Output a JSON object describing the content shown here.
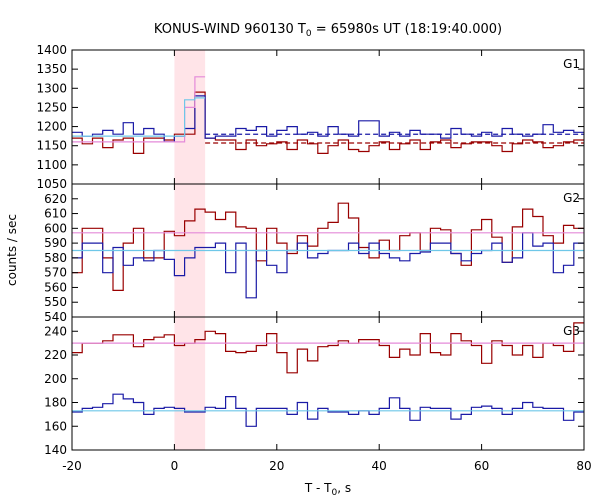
{
  "chart_data": {
    "type": "line",
    "title_main": "KONUS-WIND 960130 T",
    "title_sub": "0",
    "title_rest": " = 65980s UT (18:19:40.000)",
    "xlabel_main": "T - T",
    "xlabel_sub": "0",
    "xlabel_rest": ", s",
    "ylabel": "counts / sec",
    "xlim": [
      -20,
      80
    ],
    "x_ticks": [
      "-20",
      "0",
      "20",
      "40",
      "60",
      "80"
    ],
    "x_tick_values": [
      -20,
      0,
      20,
      40,
      60,
      80
    ],
    "bin_width": 2,
    "x_start": -20,
    "highlight_interval": [
      0,
      6
    ],
    "colors": {
      "red": "#990000",
      "blue": "#1a1aa6",
      "pink": "#e48ad9",
      "cyan": "#6ec7e8",
      "highlight": "#ffe4e8"
    },
    "panels": [
      {
        "label": "G1",
        "ylim": [
          1050,
          1400
        ],
        "y_ticks": [
          "1050",
          "1100",
          "1150",
          "1200",
          "1250",
          "1300",
          "1350",
          "1400"
        ],
        "y_tick_values": [
          1050,
          1100,
          1150,
          1200,
          1250,
          1300,
          1350,
          1400
        ],
        "series": [
          {
            "name": "G1 red",
            "color": "red",
            "values": [
              1170,
              1155,
              1170,
              1145,
              1165,
              1170,
              1130,
              1170,
              1170,
              1165,
              1180,
              1180,
              1290,
              1170,
              1165,
              1165,
              1140,
              1165,
              1150,
              1155,
              1160,
              1140,
              1165,
              1155,
              1130,
              1150,
              1165,
              1140,
              1135,
              1150,
              1160,
              1140,
              1155,
              1165,
              1140,
              1160,
              1165,
              1145,
              1155,
              1160,
              1160,
              1150,
              1135,
              1155,
              1165,
              1160,
              1145,
              1150,
              1160,
              1165
            ]
          },
          {
            "name": "G1 blue",
            "color": "blue",
            "values": [
              1185,
              1175,
              1180,
              1190,
              1180,
              1210,
              1180,
              1195,
              1180,
              1160,
              1175,
              1195,
              1280,
              1170,
              1175,
              1175,
              1195,
              1190,
              1200,
              1175,
              1190,
              1200,
              1180,
              1185,
              1175,
              1200,
              1180,
              1175,
              1215,
              1215,
              1175,
              1185,
              1175,
              1190,
              1180,
              1180,
              1170,
              1195,
              1180,
              1175,
              1185,
              1175,
              1195,
              1180,
              1175,
              1180,
              1205,
              1185,
              1190,
              1185
            ]
          },
          {
            "name": "G1 pink",
            "color": "pink",
            "values": [
              1160,
              1160,
              1160,
              1160,
              1160,
              1160,
              1160,
              1160,
              1160,
              1160,
              1160,
              1250,
              1330,
              null,
              null,
              null,
              null,
              null,
              null,
              null,
              null,
              null,
              null,
              null,
              null,
              null,
              null,
              null,
              null,
              null,
              null,
              null,
              null,
              null,
              null,
              null,
              null,
              null,
              null,
              null,
              null,
              null,
              null,
              null,
              null,
              null,
              null,
              null,
              null,
              null
            ]
          },
          {
            "name": "G1 cyan",
            "color": "cyan",
            "values": [
              1175,
              1175,
              1175,
              1175,
              1175,
              1175,
              1175,
              1175,
              1175,
              1175,
              1175,
              1270,
              1275,
              null,
              null,
              null,
              null,
              null,
              null,
              null,
              null,
              null,
              null,
              null,
              null,
              null,
              null,
              null,
              null,
              null,
              null,
              null,
              null,
              null,
              null,
              null,
              null,
              null,
              null,
              null,
              null,
              null,
              null,
              null,
              null,
              null,
              null,
              null,
              null,
              null
            ]
          }
        ],
        "background_lines": [
          {
            "color": "red",
            "value": 1157,
            "dashed": true,
            "from": 6
          },
          {
            "color": "blue",
            "value": 1180,
            "dashed": true,
            "from": 6
          }
        ]
      },
      {
        "label": "G2",
        "ylim": [
          540,
          630
        ],
        "y_ticks": [
          "540",
          "550",
          "560",
          "570",
          "580",
          "590",
          "600",
          "610",
          "620"
        ],
        "y_tick_values": [
          540,
          550,
          560,
          570,
          580,
          590,
          600,
          610,
          620
        ],
        "series": [
          {
            "name": "G2 red",
            "color": "red",
            "values": [
              570,
              600,
              600,
              580,
              558,
              590,
              600,
              580,
              580,
              598,
              595,
              605,
              613,
              611,
              606,
              611,
              601,
              600,
              578,
              600,
              590,
              583,
              595,
              588,
              600,
              604,
              617,
              607,
              587,
              580,
              592,
              585,
              595,
              597,
              585,
              600,
              599,
              583,
              575,
              599,
              606,
              594,
              577,
              601,
              613,
              608,
              595,
              590,
              602,
              600
            ]
          },
          {
            "name": "G2 blue",
            "color": "blue",
            "values": [
              580,
              590,
              590,
              570,
              587,
              575,
              580,
              578,
              585,
              579,
              568,
              580,
              587,
              587,
              590,
              570,
              590,
              553,
              585,
              575,
              570,
              585,
              590,
              580,
              583,
              585,
              585,
              590,
              583,
              590,
              583,
              580,
              578,
              583,
              584,
              590,
              590,
              583,
              578,
              583,
              585,
              590,
              577,
              580,
              597,
              588,
              590,
              570,
              575,
              590
            ]
          },
          {
            "name": "G2 pink",
            "color": "pink",
            "values": [
              597,
              597,
              597,
              597,
              597,
              597,
              597,
              597,
              597,
              597,
              597,
              597,
              597,
              597,
              597,
              597,
              597,
              597,
              597,
              597,
              597,
              597,
              597,
              597,
              597,
              597,
              597,
              597,
              597,
              597,
              597,
              597,
              597,
              597,
              597,
              597,
              597,
              597,
              597,
              597,
              597,
              597,
              597,
              597,
              597,
              597,
              597,
              597,
              597,
              597
            ]
          },
          {
            "name": "G2 cyan",
            "color": "cyan",
            "values": [
              585,
              585,
              585,
              585,
              585,
              585,
              585,
              585,
              585,
              585,
              585,
              585,
              585,
              585,
              585,
              585,
              585,
              585,
              585,
              585,
              585,
              585,
              585,
              585,
              585,
              585,
              585,
              585,
              585,
              585,
              585,
              585,
              585,
              585,
              585,
              585,
              585,
              585,
              585,
              585,
              585,
              585,
              585,
              585,
              585,
              585,
              585,
              585,
              585,
              585
            ]
          }
        ],
        "background_lines": []
      },
      {
        "label": "G3",
        "ylim": [
          140,
          252
        ],
        "y_ticks": [
          "140",
          "160",
          "180",
          "200",
          "220",
          "240"
        ],
        "y_tick_values": [
          140,
          160,
          180,
          200,
          220,
          240
        ],
        "series": [
          {
            "name": "G3 red",
            "color": "red",
            "values": [
              222,
              230,
              230,
              232,
              237,
              237,
              227,
              233,
              235,
              237,
              228,
              230,
              233,
              240,
              238,
              223,
              222,
              223,
              228,
              238,
              222,
              205,
              225,
              215,
              227,
              228,
              232,
              230,
              233,
              233,
              228,
              218,
              225,
              220,
              238,
              222,
              220,
              238,
              232,
              228,
              213,
              232,
              228,
              220,
              228,
              218,
              230,
              228,
              223,
              247
            ]
          },
          {
            "name": "G3 blue",
            "color": "blue",
            "values": [
              172,
              175,
              176,
              179,
              187,
              183,
              180,
              170,
              175,
              176,
              175,
              172,
              172,
              176,
              175,
              185,
              175,
              160,
              175,
              175,
              175,
              170,
              180,
              166,
              175,
              172,
              172,
              170,
              173,
              170,
              175,
              184,
              175,
              165,
              176,
              175,
              175,
              166,
              170,
              176,
              177,
              175,
              170,
              175,
              180,
              176,
              175,
              175,
              165,
              172
            ]
          },
          {
            "name": "G3 pink",
            "color": "pink",
            "values": [
              230,
              230,
              230,
              230,
              230,
              230,
              230,
              230,
              230,
              230,
              230,
              230,
              230,
              230,
              230,
              230,
              230,
              230,
              230,
              230,
              230,
              230,
              230,
              230,
              230,
              230,
              230,
              230,
              230,
              230,
              230,
              230,
              230,
              230,
              230,
              230,
              230,
              230,
              230,
              230,
              230,
              230,
              230,
              230,
              230,
              230,
              230,
              230,
              230,
              230
            ]
          },
          {
            "name": "G3 cyan",
            "color": "cyan",
            "values": [
              173,
              173,
              173,
              173,
              173,
              173,
              173,
              173,
              173,
              173,
              173,
              173,
              173,
              173,
              173,
              173,
              173,
              173,
              173,
              173,
              173,
              173,
              173,
              173,
              173,
              173,
              173,
              173,
              173,
              173,
              173,
              173,
              173,
              173,
              173,
              173,
              173,
              173,
              173,
              173,
              173,
              173,
              173,
              173,
              173,
              173,
              173,
              173,
              173,
              173
            ]
          }
        ],
        "background_lines": []
      }
    ]
  }
}
